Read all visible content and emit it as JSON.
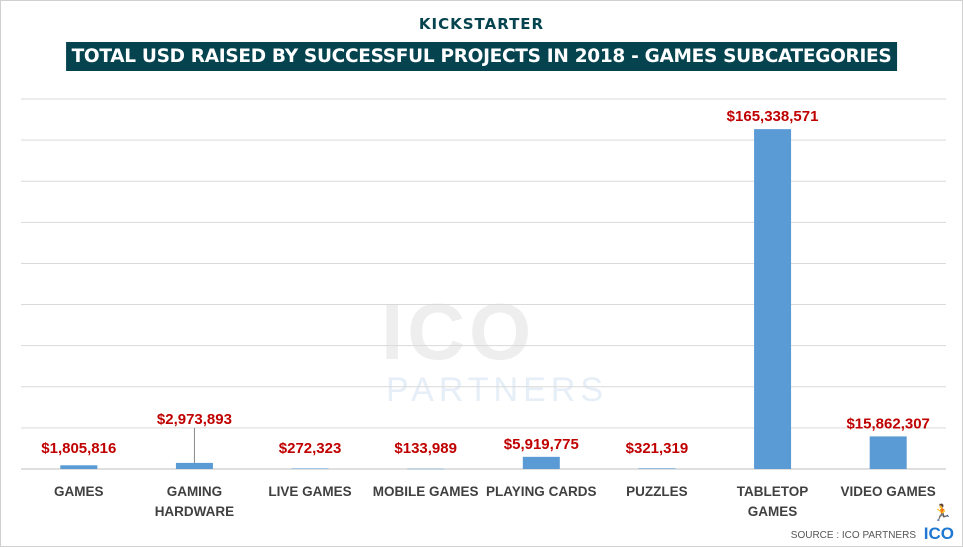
{
  "brand": "KICKSTARTER",
  "chart_data": {
    "type": "bar",
    "title": "TOTAL USD RAISED BY SUCCESSFUL PROJECTS IN 2018 - GAMES SUBCATEGORIES",
    "categories": [
      [
        "GAMES"
      ],
      [
        "GAMING",
        "HARDWARE"
      ],
      [
        "LIVE GAMES"
      ],
      [
        "MOBILE GAMES"
      ],
      [
        "PLAYING CARDS"
      ],
      [
        "PUZZLES"
      ],
      [
        "TABLETOP",
        "GAMES"
      ],
      [
        "VIDEO GAMES"
      ]
    ],
    "values": [
      1805816,
      2973893,
      272323,
      133989,
      5919775,
      321319,
      165338571,
      15862307
    ],
    "data_labels": [
      "$1,805,816",
      "$2,973,893",
      "$272,323",
      "$133,989",
      "$5,919,775",
      "$321,319",
      "$165,338,571",
      "$15,862,307"
    ],
    "ylim": [
      0,
      180000000
    ],
    "grid": true,
    "xlabel": "",
    "ylabel": "",
    "bar_color": "#5b9bd5",
    "label_color": "#c00000"
  },
  "watermark": {
    "line1": "ICO",
    "line2": "PARTNERS"
  },
  "source": "SOURCE : ICO PARTNERS",
  "logo": "ICO"
}
